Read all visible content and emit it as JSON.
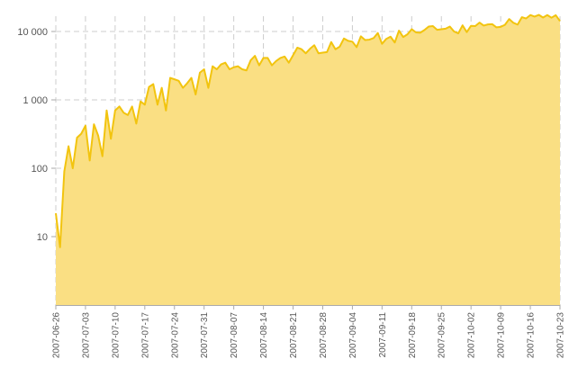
{
  "chart_data": {
    "type": "area",
    "title": "",
    "xlabel": "",
    "ylabel": "",
    "y_scale": "log",
    "ylim": [
      1,
      20000
    ],
    "xlim": [
      "2007-06-26",
      "2007-10-23"
    ],
    "grid": true,
    "legend": "none",
    "colors": {
      "line": "#F2C40F",
      "fill": "#FADF83",
      "grid": "#CCCCCC",
      "axis": "#AAAAAA"
    },
    "y_ticks": [
      {
        "value": 10,
        "label": "10"
      },
      {
        "value": 100,
        "label": "100"
      },
      {
        "value": 1000,
        "label": "1 000"
      },
      {
        "value": 10000,
        "label": "10 000"
      }
    ],
    "x_ticks": [
      "2007-06-26",
      "2007-07-03",
      "2007-07-10",
      "2007-07-17",
      "2007-07-24",
      "2007-07-31",
      "2007-08-07",
      "2007-08-14",
      "2007-08-21",
      "2007-08-28",
      "2007-09-04",
      "2007-09-11",
      "2007-09-18",
      "2007-09-25",
      "2007-10-02",
      "2007-10-09",
      "2007-10-16",
      "2007-10-23"
    ],
    "series": [
      {
        "x": [
          "2007-06-26",
          "2007-06-27",
          "2007-06-28",
          "2007-06-29",
          "2007-06-30",
          "2007-07-01",
          "2007-07-02",
          "2007-07-03",
          "2007-07-04",
          "2007-07-05",
          "2007-07-06",
          "2007-07-07",
          "2007-07-08",
          "2007-07-09",
          "2007-07-10",
          "2007-07-11",
          "2007-07-12",
          "2007-07-13",
          "2007-07-14",
          "2007-07-15",
          "2007-07-16",
          "2007-07-17",
          "2007-07-18",
          "2007-07-19",
          "2007-07-20",
          "2007-07-21",
          "2007-07-22",
          "2007-07-23",
          "2007-07-24",
          "2007-07-25",
          "2007-07-26",
          "2007-07-27",
          "2007-07-28",
          "2007-07-29",
          "2007-07-30",
          "2007-07-31",
          "2007-08-01",
          "2007-08-02",
          "2007-08-03",
          "2007-08-04",
          "2007-08-05",
          "2007-08-06",
          "2007-08-07",
          "2007-08-08",
          "2007-08-09",
          "2007-08-10",
          "2007-08-11",
          "2007-08-12",
          "2007-08-13",
          "2007-08-14",
          "2007-08-15",
          "2007-08-16",
          "2007-08-17",
          "2007-08-18",
          "2007-08-19",
          "2007-08-20",
          "2007-08-21",
          "2007-08-22",
          "2007-08-23",
          "2007-08-24",
          "2007-08-25",
          "2007-08-26",
          "2007-08-27",
          "2007-08-28",
          "2007-08-29",
          "2007-08-30",
          "2007-08-31",
          "2007-09-01",
          "2007-09-02",
          "2007-09-03",
          "2007-09-04",
          "2007-09-05",
          "2007-09-06",
          "2007-09-07",
          "2007-09-08",
          "2007-09-09",
          "2007-09-10",
          "2007-09-11",
          "2007-09-12",
          "2007-09-13",
          "2007-09-14",
          "2007-09-15",
          "2007-09-16",
          "2007-09-17",
          "2007-09-18",
          "2007-09-19",
          "2007-09-20",
          "2007-09-21",
          "2007-09-22",
          "2007-09-23",
          "2007-09-24",
          "2007-09-25",
          "2007-09-26",
          "2007-09-27",
          "2007-09-28",
          "2007-09-29",
          "2007-09-30",
          "2007-10-01",
          "2007-10-02",
          "2007-10-03",
          "2007-10-04",
          "2007-10-05",
          "2007-10-06",
          "2007-10-07",
          "2007-10-08",
          "2007-10-09",
          "2007-10-10",
          "2007-10-11",
          "2007-10-12",
          "2007-10-13",
          "2007-10-14",
          "2007-10-15",
          "2007-10-16",
          "2007-10-17",
          "2007-10-18",
          "2007-10-19",
          "2007-10-20",
          "2007-10-21",
          "2007-10-22",
          "2007-10-23"
        ],
        "values": [
          22,
          7,
          90,
          210,
          100,
          280,
          320,
          420,
          130,
          440,
          300,
          150,
          700,
          270,
          700,
          800,
          650,
          600,
          800,
          450,
          950,
          850,
          1550,
          1700,
          850,
          1500,
          700,
          2100,
          2000,
          1900,
          1500,
          1750,
          2100,
          1200,
          2500,
          2800,
          1500,
          3100,
          2800,
          3300,
          3500,
          2800,
          3000,
          3100,
          2800,
          2700,
          3800,
          4400,
          3200,
          4100,
          4100,
          3200,
          3700,
          4100,
          4300,
          3500,
          4500,
          5800,
          5500,
          4800,
          5600,
          6300,
          4800,
          4900,
          5000,
          7000,
          5500,
          6000,
          7900,
          7300,
          7100,
          5900,
          8500,
          7500,
          7600,
          8000,
          9500,
          6600,
          7800,
          8400,
          6900,
          10300,
          8300,
          9100,
          10800,
          9700,
          9600,
          10500,
          11800,
          12000,
          10600,
          10800,
          11000,
          11800,
          10000,
          9400,
          12300,
          9800,
          12100,
          12000,
          13500,
          12200,
          12700,
          12800,
          11500,
          11700,
          12500,
          15200,
          13400,
          12600,
          16200,
          15500,
          17400,
          16500,
          17500,
          16000,
          17400,
          15900,
          17300,
          14200
        ]
      }
    ]
  }
}
